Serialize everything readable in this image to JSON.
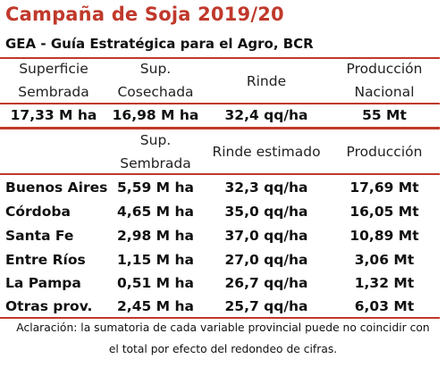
{
  "title": "Campaña de Soja 2019/20",
  "subtitle": "GEA - Guía Estratégica para el Agro, BCR",
  "national": {
    "headers": {
      "sembrada_l1": "Superficie",
      "sembrada_l2": "Sembrada",
      "cosechada_l1": "Sup.",
      "cosechada_l2": "Cosechada",
      "rinde": "Rinde",
      "produccion_l1": "Producción",
      "produccion_l2": "Nacional"
    },
    "values": {
      "sembrada": "17,33 M ha",
      "cosechada": "16,98 M ha",
      "rinde": "32,4 qq/ha",
      "produccion": "55 Mt"
    }
  },
  "provincial": {
    "headers": {
      "sembrada_l1": "Sup.",
      "sembrada_l2": "Sembrada",
      "rinde": "Rinde estimado",
      "produccion": "Producción"
    },
    "rows": [
      {
        "province": "Buenos Aires",
        "sembrada": "5,59 M ha",
        "rinde": "32,3 qq/ha",
        "produccion": "17,69 Mt"
      },
      {
        "province": "Córdoba",
        "sembrada": "4,65 M ha",
        "rinde": "35,0 qq/ha",
        "produccion": "16,05 Mt"
      },
      {
        "province": "Santa Fe",
        "sembrada": "2,98 M ha",
        "rinde": "37,0 qq/ha",
        "produccion": "10,89 Mt"
      },
      {
        "province": "Entre Ríos",
        "sembrada": "1,15 M ha",
        "rinde": "27,0 qq/ha",
        "produccion": "3,06 Mt"
      },
      {
        "province": "La Pampa",
        "sembrada": "0,51 M ha",
        "rinde": "26,7 qq/ha",
        "produccion": "1,32 Mt"
      },
      {
        "province": "Otras prov.",
        "sembrada": "2,45 M ha",
        "rinde": "25,7 qq/ha",
        "produccion": "6,03 Mt"
      }
    ]
  },
  "note": {
    "line1": "Aclaración: la sumatoria de cada variable provincial puede no coincidir con",
    "line2": "el total por efecto del redondeo de cifras."
  },
  "colors": {
    "accent": "#c0392b",
    "text": "#111111"
  }
}
